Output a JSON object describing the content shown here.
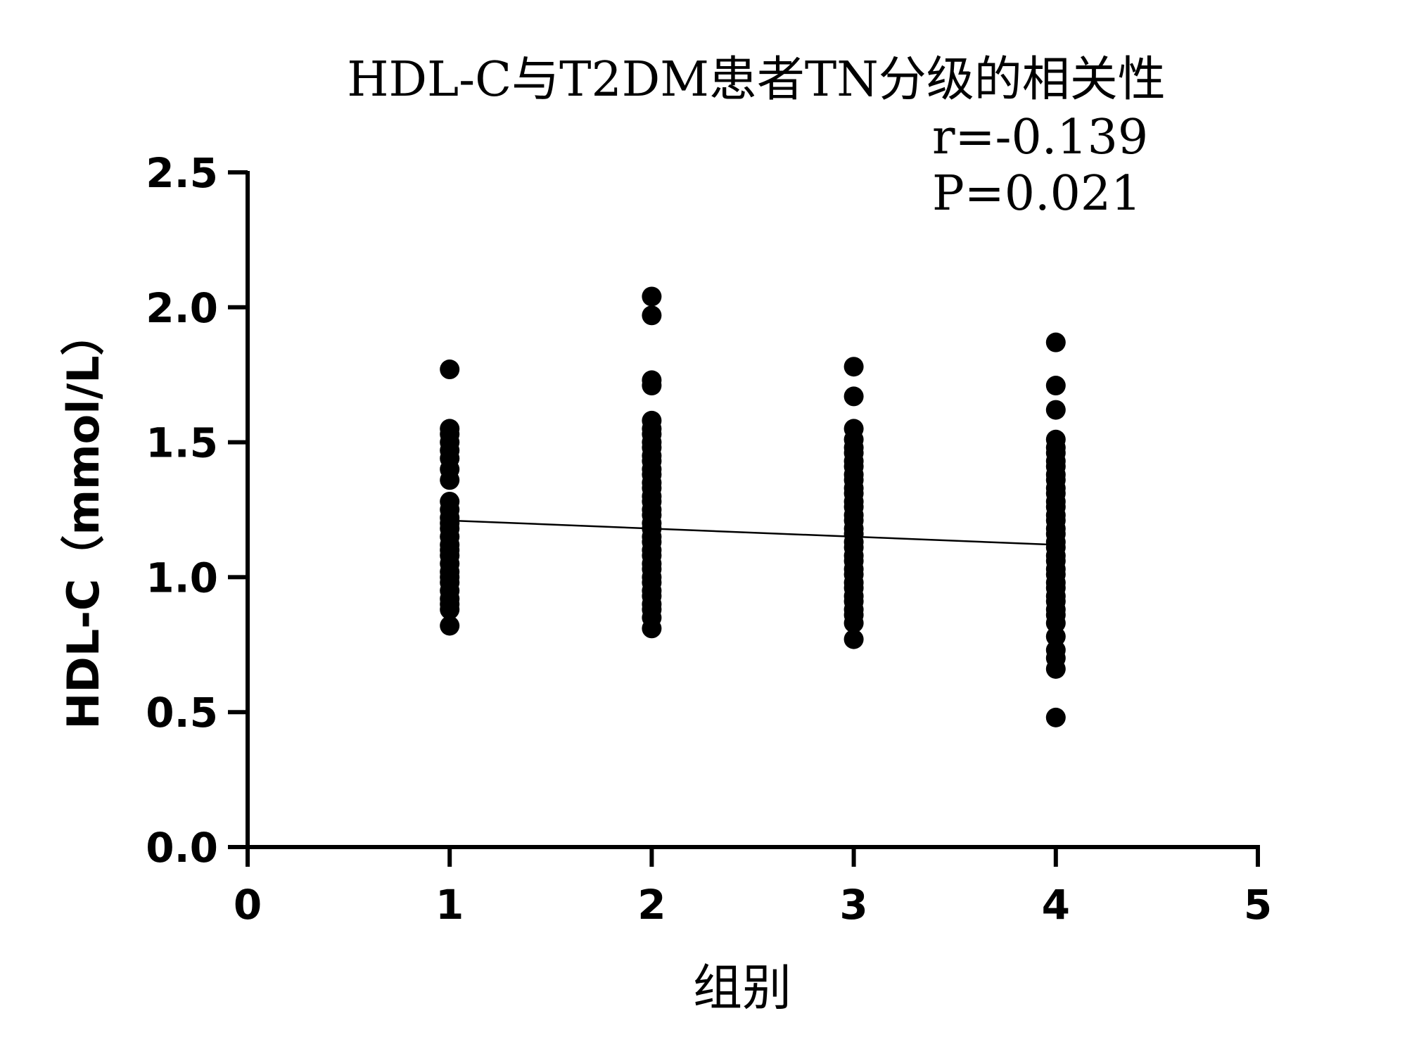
{
  "chart_data": {
    "type": "scatter",
    "title": "HDL-C与T2DM患者TN分级的相关性",
    "annotations": [
      "r=-0.139",
      "P=0.021"
    ],
    "xlabel": "组别",
    "ylabel": "HDL-C（mmol/L）",
    "xlim": [
      0,
      5
    ],
    "ylim": [
      0,
      2.5
    ],
    "x_ticks": [
      "0",
      "1",
      "2",
      "3",
      "4",
      "5"
    ],
    "y_ticks": [
      "0.0",
      "0.5",
      "1.0",
      "1.5",
      "2.0",
      "2.5"
    ],
    "grid": false,
    "legend": "none",
    "series": [
      {
        "x": 1,
        "values": [
          0.82,
          0.88,
          0.9,
          0.92,
          0.95,
          0.98,
          1.0,
          1.02,
          1.05,
          1.08,
          1.1,
          1.12,
          1.15,
          1.18,
          1.2,
          1.22,
          1.25,
          1.28,
          1.36,
          1.4,
          1.44,
          1.47,
          1.5,
          1.53,
          1.55,
          1.77
        ]
      },
      {
        "x": 2,
        "values": [
          0.81,
          0.85,
          0.88,
          0.9,
          0.93,
          0.95,
          0.98,
          1.0,
          1.03,
          1.05,
          1.08,
          1.1,
          1.13,
          1.15,
          1.18,
          1.2,
          1.23,
          1.25,
          1.28,
          1.3,
          1.33,
          1.35,
          1.38,
          1.4,
          1.43,
          1.45,
          1.48,
          1.5,
          1.53,
          1.55,
          1.58,
          1.71,
          1.73,
          1.97,
          2.04
        ]
      },
      {
        "x": 3,
        "values": [
          0.77,
          0.83,
          0.86,
          0.88,
          0.91,
          0.93,
          0.96,
          0.98,
          1.01,
          1.03,
          1.06,
          1.08,
          1.11,
          1.13,
          1.16,
          1.18,
          1.21,
          1.23,
          1.26,
          1.28,
          1.31,
          1.33,
          1.36,
          1.38,
          1.41,
          1.43,
          1.46,
          1.48,
          1.51,
          1.55,
          1.67,
          1.78
        ]
      },
      {
        "x": 4,
        "values": [
          0.48,
          0.66,
          0.7,
          0.73,
          0.78,
          0.83,
          0.86,
          0.88,
          0.91,
          0.93,
          0.96,
          0.98,
          1.01,
          1.03,
          1.06,
          1.08,
          1.11,
          1.13,
          1.16,
          1.18,
          1.21,
          1.23,
          1.26,
          1.28,
          1.31,
          1.33,
          1.36,
          1.38,
          1.41,
          1.43,
          1.46,
          1.48,
          1.51,
          1.62,
          1.71,
          1.87
        ]
      }
    ],
    "regression_line": {
      "x": [
        1,
        4
      ],
      "y": [
        1.21,
        1.12
      ]
    }
  }
}
